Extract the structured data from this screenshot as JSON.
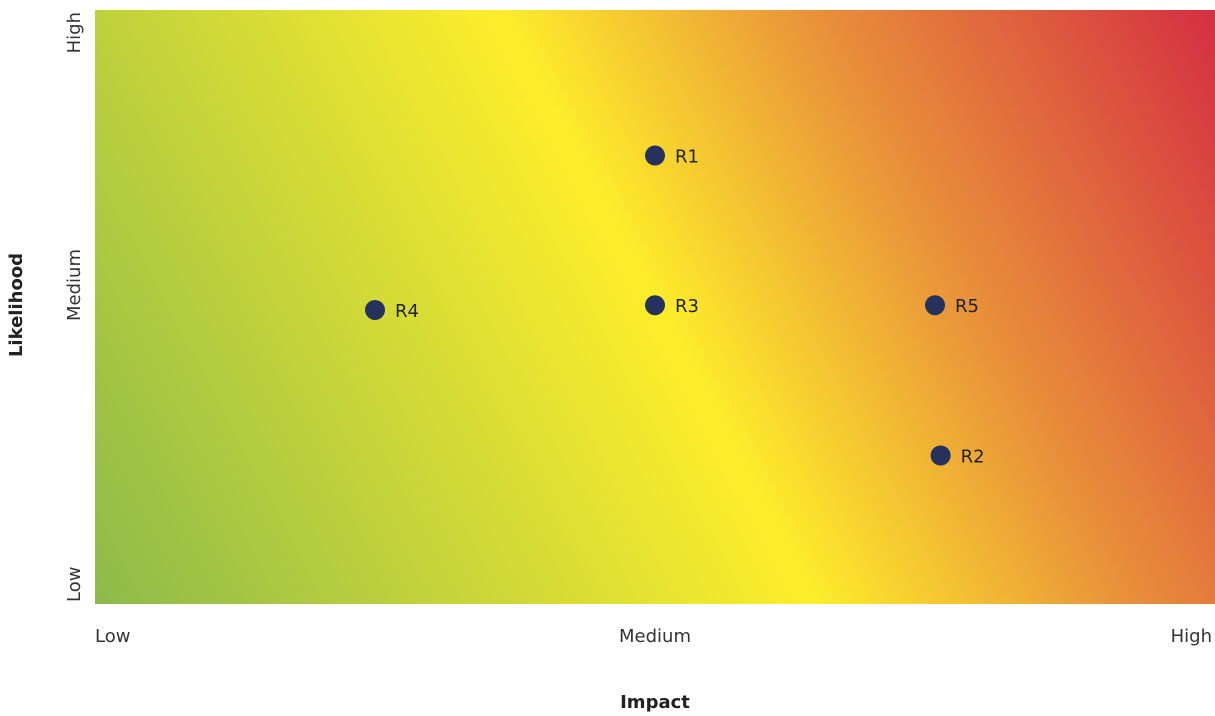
{
  "chart_data": {
    "type": "scatter",
    "title": "",
    "xlabel": "Impact",
    "ylabel": "Likelihood",
    "x_ticks": [
      "Low",
      "Medium",
      "High"
    ],
    "y_ticks": [
      "Low",
      "Medium",
      "High"
    ],
    "xlim": [
      0,
      1
    ],
    "ylim": [
      0,
      1
    ],
    "grid": false,
    "background": "diagonal-gradient-green-yellow-red",
    "colors": {
      "low": "#8DBA4A",
      "mid": "#FDEE2B",
      "orange": "#E8913A",
      "high": "#D42F42",
      "point": "#26325E"
    },
    "points": [
      {
        "label": "R1",
        "x": 0.5,
        "y": 0.755
      },
      {
        "label": "R2",
        "x": 0.755,
        "y": 0.25
      },
      {
        "label": "R3",
        "x": 0.5,
        "y": 0.503
      },
      {
        "label": "R4",
        "x": 0.25,
        "y": 0.495
      },
      {
        "label": "R5",
        "x": 0.75,
        "y": 0.503
      }
    ]
  }
}
